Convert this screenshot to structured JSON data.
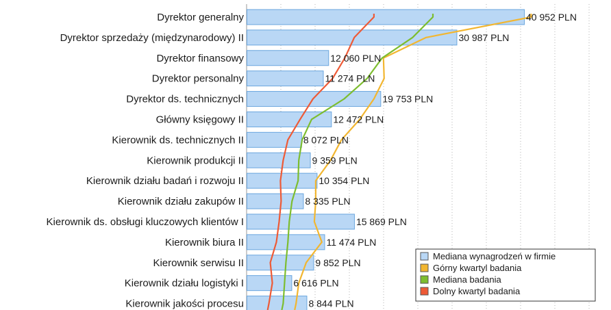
{
  "chart_data": {
    "type": "bar",
    "orientation": "horizontal",
    "xlim": [
      0,
      50000
    ],
    "grid": true,
    "legend_position": "bottom-right",
    "categories": [
      "Dyrektor generalny",
      "Dyrektor sprzedaży (międzynarodowy) II",
      "Dyrektor finansowy",
      "Dyrektor personalny",
      "Dyrektor ds. technicznych",
      "Główny księgowy II",
      "Kierownik ds. technicznych II",
      "Kierownik produkcji II",
      "Kierownik działu badań i rozwoju II",
      "Kierownik działu zakupów II",
      "Kierownik ds. obsługi kluczowych klientów I",
      "Kierownik biura II",
      "Kierownik serwisu II",
      "Kierownik działu logistyki I",
      "Kierownik jakości procesu"
    ],
    "series": [
      {
        "name": "Mediana wynagrodzeń w firmie",
        "type": "bar",
        "color": "#b9d7f5",
        "stroke": "#6aa6de",
        "values": [
          40952,
          30987,
          12060,
          11274,
          19753,
          12472,
          8072,
          9359,
          10354,
          8335,
          15869,
          11474,
          9852,
          6616,
          8844
        ],
        "labels": [
          "40 952 PLN",
          "30 987 PLN",
          "12 060 PLN",
          "11 274 PLN",
          "19 753 PLN",
          "12 472 PLN",
          "8 072 PLN",
          "9 359 PLN",
          "10 354 PLN",
          "8 335 PLN",
          "15 869 PLN",
          "11 474 PLN",
          "9 852 PLN",
          "6 616 PLN",
          "8 844 PLN"
        ]
      },
      {
        "name": "Górny kwartyl badania",
        "type": "line",
        "color": "#f2b630",
        "values": [
          42000,
          26500,
          20200,
          20300,
          18800,
          16700,
          14000,
          12400,
          10200,
          10200,
          10000,
          11100,
          8800,
          7700,
          7300
        ]
      },
      {
        "name": "Mediana badania",
        "type": "line",
        "color": "#7dbd2f",
        "values": [
          27500,
          24500,
          20000,
          17800,
          14400,
          9600,
          8200,
          7700,
          7600,
          6700,
          6300,
          6100,
          5800,
          5600,
          5400
        ]
      },
      {
        "name": "Dolny kwartyl badania",
        "type": "line",
        "color": "#ee5a36",
        "values": [
          18800,
          15900,
          14500,
          12700,
          9800,
          7900,
          6100,
          5400,
          5000,
          5100,
          4800,
          4400,
          3500,
          3800,
          3300
        ]
      }
    ]
  }
}
